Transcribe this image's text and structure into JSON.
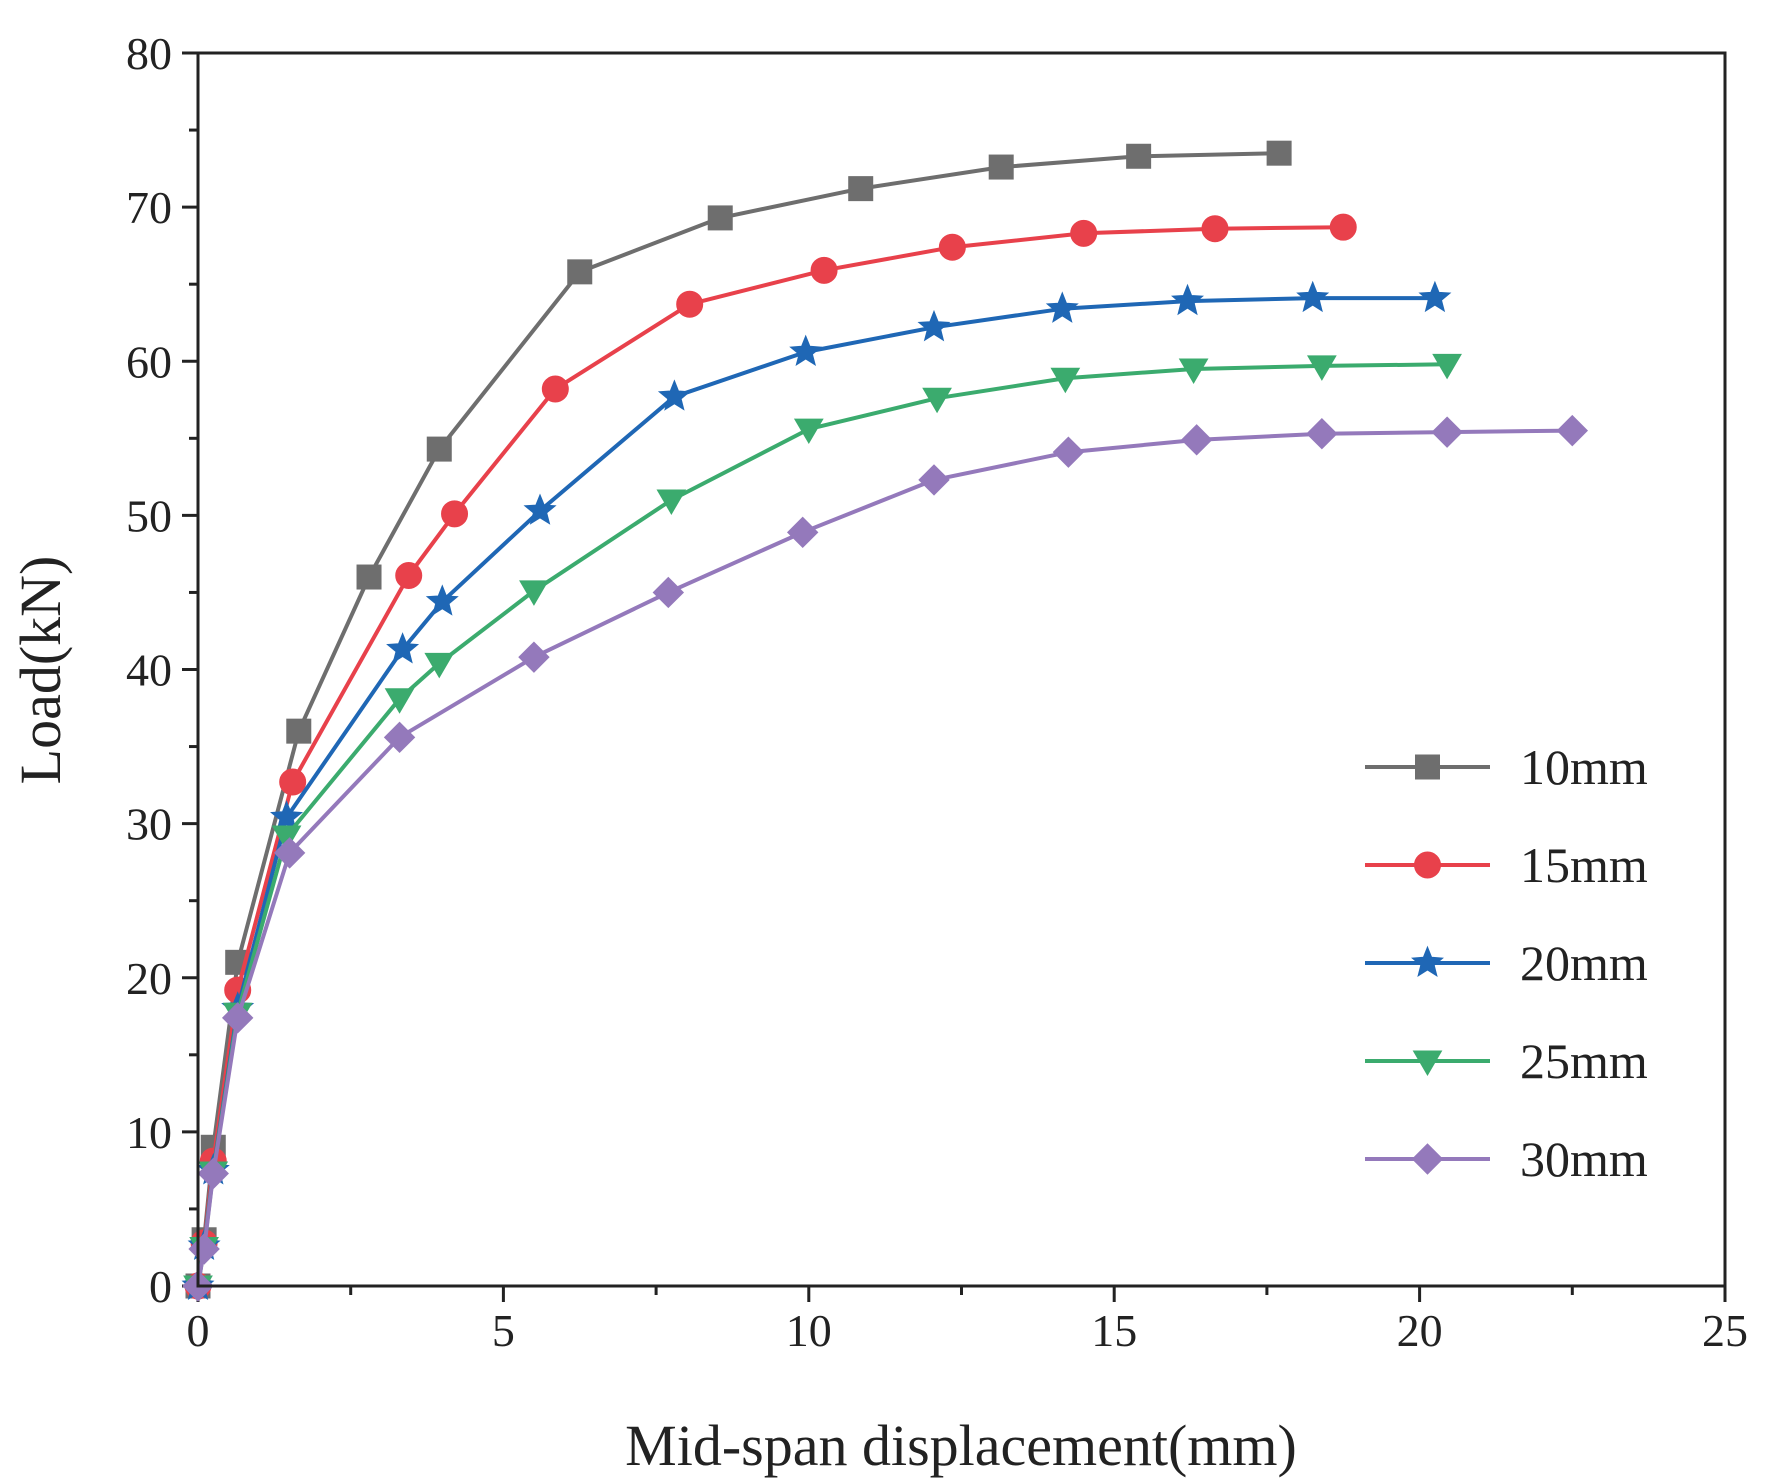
{
  "chart_data": {
    "type": "line",
    "title": "",
    "xlabel": "Mid-span displacement(mm)",
    "ylabel": "Load(kN)",
    "xlim": [
      0,
      25
    ],
    "ylim": [
      0,
      80
    ],
    "xticks": [
      0,
      5,
      10,
      15,
      20,
      25
    ],
    "yticks": [
      0,
      10,
      20,
      30,
      40,
      50,
      60,
      70,
      80
    ],
    "legend_position": "right",
    "series": [
      {
        "name": "10mm",
        "color": "#6e6e6e",
        "marker": "square",
        "x": [
          0,
          0.1,
          0.25,
          0.65,
          1.65,
          2.8,
          3.95,
          6.25,
          8.55,
          10.85,
          13.15,
          15.4,
          17.7
        ],
        "y": [
          0,
          3,
          9,
          21,
          36,
          46,
          54.3,
          65.8,
          69.3,
          71.2,
          72.6,
          73.3,
          73.5
        ]
      },
      {
        "name": "15mm",
        "color": "#e8414b",
        "marker": "circle",
        "x": [
          0,
          0.1,
          0.25,
          0.65,
          1.55,
          3.45,
          4.2,
          5.85,
          8.05,
          10.25,
          12.35,
          14.5,
          16.65,
          18.75
        ],
        "y": [
          0,
          2.8,
          8.1,
          19.2,
          32.7,
          46.1,
          50.1,
          58.2,
          63.7,
          65.9,
          67.4,
          68.3,
          68.6,
          68.7
        ]
      },
      {
        "name": "20mm",
        "color": "#1f67b5",
        "marker": "star",
        "x": [
          0,
          0.1,
          0.25,
          0.65,
          1.45,
          3.35,
          4.0,
          5.6,
          7.8,
          9.95,
          12.05,
          14.15,
          16.2,
          18.25,
          20.25
        ],
        "y": [
          0,
          2.6,
          7.5,
          18.0,
          30.4,
          41.3,
          44.4,
          50.3,
          57.7,
          60.6,
          62.2,
          63.4,
          63.9,
          64.1,
          64.1
        ]
      },
      {
        "name": "25mm",
        "color": "#3bab6e",
        "marker": "triangle-down",
        "x": [
          0,
          0.1,
          0.25,
          0.65,
          1.45,
          3.3,
          3.95,
          5.5,
          7.75,
          10.0,
          12.1,
          14.2,
          16.3,
          18.4,
          20.45
        ],
        "y": [
          0,
          2.5,
          7.4,
          17.7,
          29.2,
          38.1,
          40.4,
          45.1,
          51.0,
          55.6,
          57.6,
          58.9,
          59.5,
          59.7,
          59.8
        ]
      },
      {
        "name": "30mm",
        "color": "#9479bb",
        "marker": "diamond",
        "x": [
          0,
          0.1,
          0.25,
          0.65,
          1.5,
          3.3,
          5.5,
          7.7,
          9.9,
          12.05,
          14.25,
          16.35,
          18.4,
          20.45,
          22.5
        ],
        "y": [
          0,
          2.4,
          7.3,
          17.4,
          28.1,
          35.6,
          40.8,
          45.0,
          48.9,
          52.3,
          54.1,
          54.9,
          55.3,
          55.4,
          55.5
        ]
      }
    ]
  }
}
